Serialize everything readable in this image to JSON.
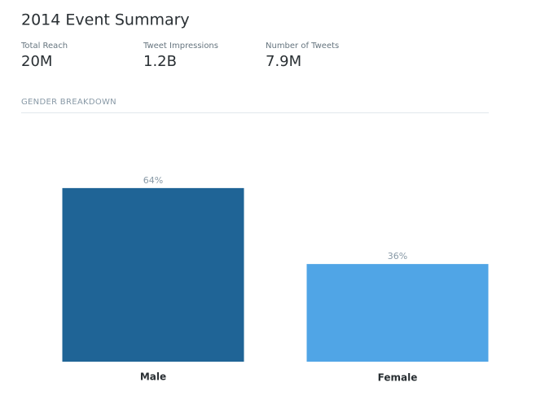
{
  "header": {
    "title": "2014 Event Summary"
  },
  "stats": [
    {
      "label": "Total Reach",
      "value": "20M"
    },
    {
      "label": "Tweet Impressions",
      "value": "1.2B"
    },
    {
      "label": "Number of Tweets",
      "value": "7.9M"
    }
  ],
  "section": {
    "title": "GENDER BREAKDOWN"
  },
  "chart_data": {
    "type": "bar",
    "categories": [
      "Male",
      "Female"
    ],
    "values": [
      64,
      36
    ],
    "value_labels": [
      "64%",
      "36%"
    ],
    "colors": [
      "#1f6496",
      "#50a5e6"
    ]
  }
}
